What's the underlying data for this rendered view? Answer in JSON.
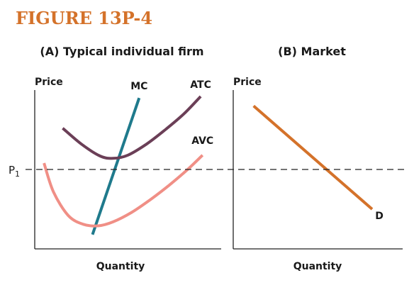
{
  "figure": {
    "title": "FIGURE 13P-4",
    "title_color": "#d4722a"
  },
  "price_level": {
    "label": "P",
    "subscript": "1"
  },
  "chart_data": [
    {
      "type": "line",
      "title": "(A) Typical individual firm",
      "xlabel": "Quantity",
      "ylabel": "Price",
      "xlim": [
        0,
        10
      ],
      "ylim": [
        0,
        10
      ],
      "grid": false,
      "reference_line": {
        "label": "P1",
        "y": 5.0,
        "style": "dashed"
      },
      "series": [
        {
          "name": "MC",
          "color": "#1f7a8c",
          "x": [
            3.1,
            5.6
          ],
          "y": [
            0.9,
            9.5
          ]
        },
        {
          "name": "ATC",
          "color": "#6b3f57",
          "x": [
            1.5,
            2.5,
            3.5,
            4.2,
            5.0,
            6.0,
            7.0,
            8.0,
            8.9
          ],
          "y": [
            7.6,
            6.6,
            5.85,
            5.7,
            5.9,
            6.6,
            7.5,
            8.5,
            9.6
          ]
        },
        {
          "name": "AVC",
          "color": "#f08f86",
          "x": [
            0.5,
            1.0,
            1.8,
            2.6,
            3.4,
            4.2,
            5.2,
            6.2,
            7.2,
            8.2,
            9.0
          ],
          "y": [
            5.4,
            3.6,
            2.1,
            1.55,
            1.45,
            1.7,
            2.3,
            3.1,
            4.0,
            5.0,
            5.9
          ]
        }
      ]
    },
    {
      "type": "line",
      "title": "(B) Market",
      "xlabel": "Quantity",
      "ylabel": "Price",
      "xlim": [
        0,
        10
      ],
      "ylim": [
        0,
        10
      ],
      "grid": false,
      "reference_line": {
        "label": "P1",
        "y": 5.0,
        "style": "dashed"
      },
      "series": [
        {
          "name": "D",
          "color": "#d4722a",
          "x": [
            1.2,
            8.2
          ],
          "y": [
            9.0,
            2.5
          ]
        }
      ]
    }
  ]
}
